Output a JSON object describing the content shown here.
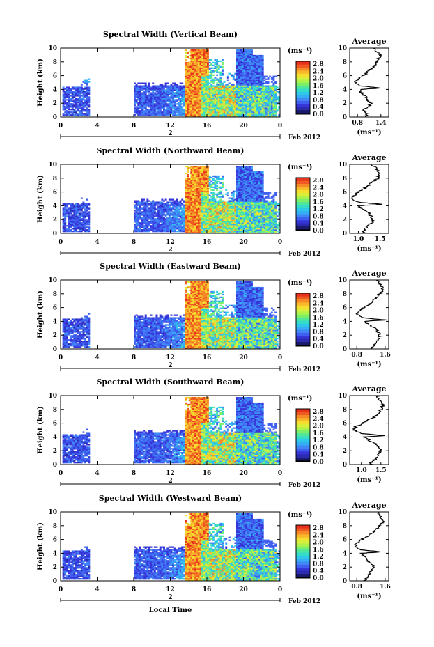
{
  "figure": {
    "xlabel": "Local Time",
    "date_label": "Feb 2012",
    "day_marker": "2",
    "colorbar_unit": "(ms⁻¹)",
    "profile_title": "Average",
    "profile_xlabel": "(ms⁻¹)"
  },
  "colorbar": {
    "ticks": [
      "2.8",
      "2.4",
      "2.0",
      "1.6",
      "1.2",
      "0.8",
      "0.4",
      "0.0"
    ],
    "colors": [
      "#1a1a6e",
      "#2b2bb0",
      "#3535d8",
      "#3f5ff0",
      "#3f88f5",
      "#36aef5",
      "#2ec9e8",
      "#36dcc8",
      "#4fe79a",
      "#7cef6a",
      "#aef24a",
      "#d9ef3a",
      "#f5de30",
      "#f8b82a",
      "#f58a26",
      "#ef5a22",
      "#e8321c"
    ]
  },
  "chart_data": [
    {
      "type": "heatmap",
      "title": "Spectral Width (Vertical Beam)",
      "xlabel": "Local Time",
      "ylabel": "Height (km)",
      "x_ticks": [
        "0",
        "4",
        "8",
        "12",
        "16",
        "20",
        "0"
      ],
      "y_ticks": [
        "0",
        "2",
        "4",
        "6",
        "8",
        "10"
      ],
      "xlim": [
        0,
        24
      ],
      "ylim": [
        0,
        10
      ],
      "colorbar_range": [
        0.0,
        3.0
      ],
      "profile": {
        "title": "Average",
        "x_ticks": [
          "0.8",
          "1.4"
        ],
        "xlim": [
          0.6,
          1.6
        ],
        "y_ticks": [
          "0",
          "2",
          "4",
          "6",
          "8",
          "10"
        ],
        "heights": [
          0,
          0.5,
          1,
          1.5,
          2,
          2.5,
          3,
          3.5,
          4,
          4.2,
          4.5,
          5,
          5.5,
          6,
          6.5,
          7,
          7.5,
          8,
          8.5,
          9,
          9.5,
          10
        ],
        "values": [
          1.0,
          1.05,
          0.95,
          1.1,
          1.15,
          1.05,
          1.0,
          0.9,
          0.85,
          1.4,
          0.9,
          0.75,
          0.8,
          0.95,
          1.05,
          1.15,
          1.25,
          1.3,
          1.35,
          1.4,
          1.3,
          1.2
        ]
      }
    },
    {
      "type": "heatmap",
      "title": "Spectral Width (Northward Beam)",
      "xlabel": "Local Time",
      "ylabel": "Height (km)",
      "x_ticks": [
        "0",
        "4",
        "8",
        "12",
        "16",
        "20",
        "0"
      ],
      "y_ticks": [
        "0",
        "2",
        "4",
        "6",
        "8",
        "10"
      ],
      "xlim": [
        0,
        24
      ],
      "ylim": [
        0,
        10
      ],
      "colorbar_range": [
        0.0,
        3.0
      ],
      "profile": {
        "title": "Average",
        "x_ticks": [
          "1.0",
          "1.5"
        ],
        "xlim": [
          0.8,
          1.7
        ],
        "y_ticks": [
          "0",
          "2",
          "4",
          "6",
          "8",
          "10"
        ],
        "heights": [
          0,
          0.5,
          1,
          1.5,
          2,
          2.5,
          3,
          3.5,
          4,
          4.2,
          4.5,
          5,
          5.5,
          6,
          6.5,
          7,
          7.5,
          8,
          8.5,
          9,
          9.5,
          10
        ],
        "values": [
          1.1,
          1.15,
          1.2,
          1.3,
          1.35,
          1.3,
          1.25,
          1.1,
          1.0,
          1.55,
          1.0,
          0.85,
          0.9,
          1.0,
          1.15,
          1.25,
          1.35,
          1.45,
          1.5,
          1.45,
          1.4,
          1.3
        ]
      }
    },
    {
      "type": "heatmap",
      "title": "Spectral Width (Eastward Beam)",
      "xlabel": "Local Time",
      "ylabel": "Height (km)",
      "x_ticks": [
        "0",
        "4",
        "8",
        "12",
        "16",
        "20",
        "0"
      ],
      "y_ticks": [
        "0",
        "2",
        "4",
        "6",
        "8",
        "10"
      ],
      "xlim": [
        0,
        24
      ],
      "ylim": [
        0,
        10
      ],
      "colorbar_range": [
        0.0,
        3.0
      ],
      "profile": {
        "title": "Average",
        "x_ticks": [
          "0.8",
          "1.6"
        ],
        "xlim": [
          0.6,
          1.7
        ],
        "y_ticks": [
          "0",
          "2",
          "4",
          "6",
          "8",
          "10"
        ],
        "heights": [
          0,
          0.5,
          1,
          1.5,
          2,
          2.5,
          3,
          3.5,
          4,
          4.2,
          4.5,
          5,
          5.5,
          6,
          6.5,
          7,
          7.5,
          8,
          8.5,
          9,
          9.5,
          10
        ],
        "values": [
          1.2,
          1.3,
          1.35,
          1.4,
          1.45,
          1.4,
          1.3,
          1.15,
          1.0,
          1.6,
          1.0,
          0.8,
          0.85,
          1.0,
          1.15,
          1.25,
          1.35,
          1.45,
          1.55,
          1.5,
          1.45,
          1.4
        ]
      }
    },
    {
      "type": "heatmap",
      "title": "Spectral Width (Southward Beam)",
      "xlabel": "Local Time",
      "ylabel": "Height (km)",
      "x_ticks": [
        "0",
        "4",
        "8",
        "12",
        "16",
        "20",
        "0"
      ],
      "y_ticks": [
        "0",
        "2",
        "4",
        "6",
        "8",
        "10"
      ],
      "xlim": [
        0,
        24
      ],
      "ylim": [
        0,
        10
      ],
      "colorbar_range": [
        0.0,
        3.0
      ],
      "profile": {
        "title": "Average",
        "x_ticks": [
          "1.0",
          "1.5"
        ],
        "xlim": [
          0.7,
          1.7
        ],
        "y_ticks": [
          "0",
          "2",
          "4",
          "6",
          "8",
          "10"
        ],
        "heights": [
          0,
          0.5,
          1,
          1.5,
          2,
          2.5,
          3,
          3.5,
          4,
          4.2,
          4.5,
          5,
          5.5,
          6,
          6.5,
          7,
          7.5,
          8,
          8.5,
          9,
          9.5,
          10
        ],
        "values": [
          1.2,
          1.3,
          1.4,
          1.45,
          1.5,
          1.45,
          1.35,
          1.2,
          1.05,
          1.6,
          1.0,
          0.8,
          0.85,
          1.05,
          1.2,
          1.35,
          1.45,
          1.5,
          1.55,
          1.5,
          1.45,
          1.4
        ]
      }
    },
    {
      "type": "heatmap",
      "title": "Spectral Width (Westward Beam)",
      "xlabel": "Local Time",
      "ylabel": "Height (km)",
      "x_ticks": [
        "0",
        "4",
        "8",
        "12",
        "16",
        "20",
        "0"
      ],
      "y_ticks": [
        "0",
        "2",
        "4",
        "6",
        "8",
        "10"
      ],
      "xlim": [
        0,
        24
      ],
      "ylim": [
        0,
        10
      ],
      "colorbar_range": [
        0.0,
        3.0
      ],
      "profile": {
        "title": "Average",
        "x_ticks": [
          "0.8",
          "1.6"
        ],
        "xlim": [
          0.6,
          1.7
        ],
        "y_ticks": [
          "0",
          "2",
          "4",
          "6",
          "8",
          "10"
        ],
        "heights": [
          0,
          0.5,
          1,
          1.5,
          2,
          2.5,
          3,
          3.5,
          4,
          4.2,
          4.5,
          5,
          5.5,
          6,
          6.5,
          7,
          7.5,
          8,
          8.5,
          9,
          9.5,
          10
        ],
        "values": [
          1.0,
          1.1,
          1.15,
          1.2,
          1.3,
          1.2,
          1.1,
          1.0,
          0.95,
          1.5,
          0.9,
          0.75,
          0.8,
          0.95,
          1.1,
          1.25,
          1.35,
          1.45,
          1.55,
          1.5,
          1.45,
          1.4
        ]
      }
    }
  ]
}
